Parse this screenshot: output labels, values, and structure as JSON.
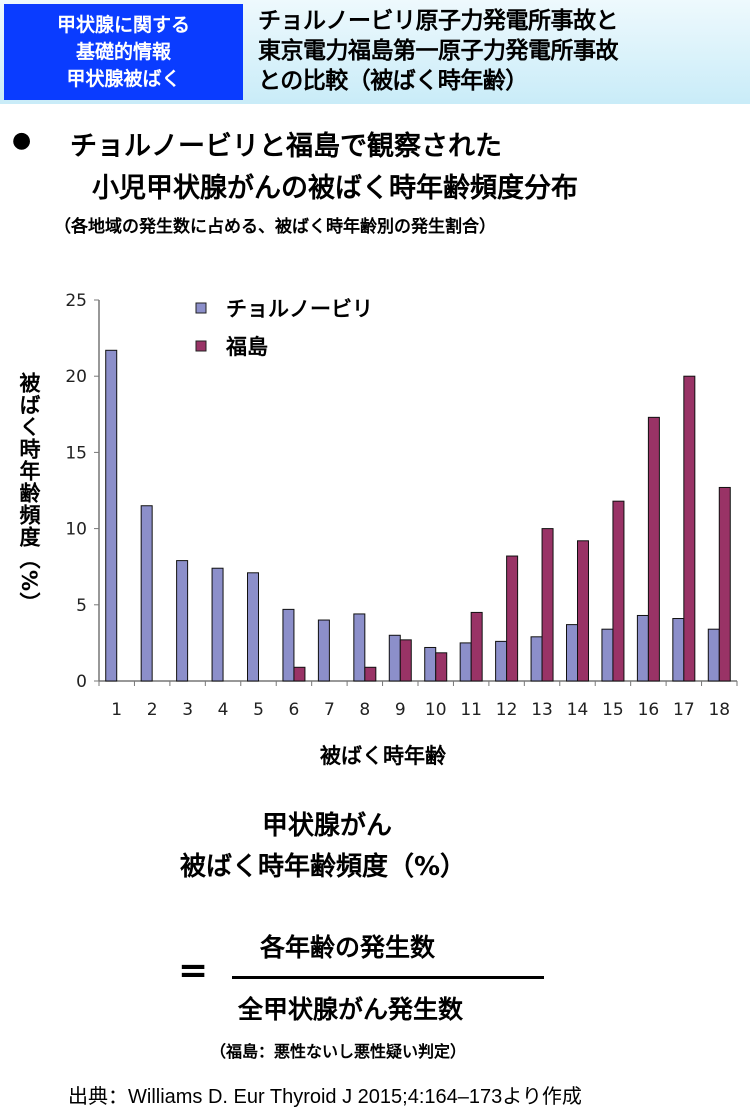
{
  "header": {
    "category_lines": [
      "甲状腺に関する",
      "基礎的情報",
      "甲状腺被ばく"
    ],
    "title_lines": [
      "チョルノービリ原子力発電所事故と",
      "東京電力福島第一原子力発電所事故",
      "との比較（被ばく時年齢）"
    ]
  },
  "section": {
    "bullet": "●",
    "title_line1": "チョルノービリと福島で観察された",
    "title_line2": "小児甲状腺がんの被ばく時年齢頻度分布",
    "subtitle": "（各地域の発生数に占める、被ばく時年齢別の発生割合）"
  },
  "chart_data": {
    "type": "bar",
    "xlabel": "被ばく時年齢",
    "ylabel": "被ばく時年齢頻度（%）",
    "categories": [
      "1",
      "2",
      "3",
      "4",
      "5",
      "6",
      "7",
      "8",
      "9",
      "10",
      "11",
      "12",
      "13",
      "14",
      "15",
      "16",
      "17",
      "18"
    ],
    "yticks": [
      "0",
      "5",
      "10",
      "15",
      "20",
      "25"
    ],
    "ylim": [
      0,
      25
    ],
    "grid": false,
    "legend_placement": "top-center",
    "series": [
      {
        "name": "チョルノービリ",
        "color": "#8c8fca",
        "values": [
          21.7,
          11.5,
          7.9,
          7.4,
          7.1,
          4.7,
          4.0,
          4.4,
          3.0,
          2.2,
          2.5,
          2.6,
          2.9,
          3.7,
          3.4,
          4.3,
          4.1,
          3.4
        ]
      },
      {
        "name": "福島",
        "color": "#993366",
        "values": [
          0,
          0,
          0,
          0,
          0,
          0.9,
          0,
          0.9,
          2.7,
          1.85,
          4.5,
          8.2,
          10.0,
          9.2,
          11.8,
          17.3,
          20.0,
          12.7
        ]
      }
    ]
  },
  "formula": {
    "line1": "甲状腺がん",
    "line2": "被ばく時年齢頻度（%）",
    "equals": "=",
    "numerator": "各年齢の発生数",
    "denominator": "全甲状腺がん発生数",
    "note": "（福島：悪性ないし悪性疑い判定）"
  },
  "source": "出典：Williams D. Eur Thyroid J 2015;4:164–173より作成"
}
